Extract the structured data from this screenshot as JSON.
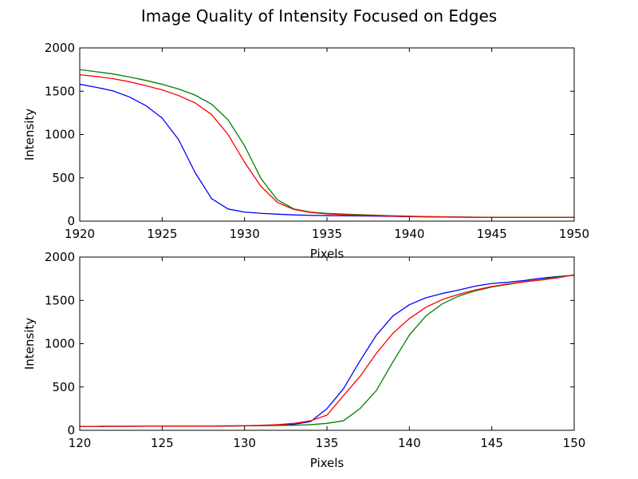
{
  "title": "Image Quality of Intensity Focused on Edges",
  "chart_data": [
    {
      "type": "line",
      "xlabel": "Pixels",
      "ylabel": "Intensity",
      "xlim": [
        1920,
        1950
      ],
      "ylim": [
        0,
        2000
      ],
      "xticks": [
        1920,
        1925,
        1930,
        1935,
        1940,
        1945,
        1950
      ],
      "yticks": [
        0,
        500,
        1000,
        1500,
        2000
      ],
      "grid": false,
      "x": [
        1920,
        1921,
        1922,
        1923,
        1924,
        1925,
        1926,
        1927,
        1928,
        1929,
        1930,
        1931,
        1932,
        1933,
        1934,
        1935,
        1936,
        1937,
        1938,
        1939,
        1940,
        1941,
        1942,
        1943,
        1944,
        1945,
        1946,
        1947,
        1948,
        1949,
        1950
      ],
      "series": [
        {
          "color": "#0000ff",
          "values": [
            1580,
            1545,
            1505,
            1435,
            1335,
            1190,
            940,
            560,
            260,
            140,
            105,
            90,
            80,
            72,
            67,
            64,
            62,
            60,
            58,
            55,
            52,
            50,
            48,
            46,
            45,
            44,
            44,
            43,
            43,
            43,
            43
          ]
        },
        {
          "color": "#008000",
          "values": [
            1750,
            1725,
            1700,
            1665,
            1625,
            1580,
            1525,
            1455,
            1350,
            1170,
            870,
            490,
            245,
            140,
            105,
            90,
            82,
            75,
            68,
            62,
            57,
            53,
            50,
            48,
            46,
            45,
            44,
            44,
            43,
            43,
            43
          ]
        },
        {
          "color": "#ff0000",
          "values": [
            1690,
            1670,
            1645,
            1610,
            1565,
            1515,
            1450,
            1365,
            1230,
            1000,
            680,
            400,
            215,
            135,
            100,
            83,
            75,
            68,
            63,
            58,
            54,
            51,
            48,
            46,
            45,
            44,
            44,
            43,
            43,
            43,
            43
          ]
        }
      ]
    },
    {
      "type": "line",
      "xlabel": "Pixels",
      "ylabel": "Intensity",
      "xlim": [
        120,
        150
      ],
      "ylim": [
        0,
        2000
      ],
      "xticks": [
        120,
        125,
        130,
        135,
        140,
        145,
        150
      ],
      "yticks": [
        0,
        500,
        1000,
        1500,
        2000
      ],
      "grid": false,
      "x": [
        120,
        121,
        122,
        123,
        124,
        125,
        126,
        127,
        128,
        129,
        130,
        131,
        132,
        133,
        134,
        135,
        136,
        137,
        138,
        139,
        140,
        141,
        142,
        143,
        144,
        145,
        146,
        147,
        148,
        149,
        150
      ],
      "series": [
        {
          "color": "#0000ff",
          "values": [
            45,
            45,
            46,
            46,
            47,
            47,
            48,
            48,
            49,
            50,
            52,
            55,
            60,
            70,
            100,
            250,
            480,
            800,
            1100,
            1320,
            1450,
            1530,
            1580,
            1620,
            1665,
            1695,
            1710,
            1730,
            1755,
            1775,
            1790
          ]
        },
        {
          "color": "#008000",
          "values": [
            45,
            45,
            46,
            46,
            47,
            47,
            48,
            48,
            49,
            50,
            51,
            53,
            55,
            58,
            65,
            80,
            110,
            250,
            460,
            790,
            1100,
            1320,
            1460,
            1550,
            1610,
            1655,
            1685,
            1715,
            1740,
            1770,
            1790
          ]
        },
        {
          "color": "#ff0000",
          "values": [
            45,
            45,
            46,
            46,
            47,
            47,
            48,
            48,
            49,
            50,
            53,
            57,
            65,
            80,
            110,
            175,
            400,
            620,
            890,
            1120,
            1290,
            1420,
            1510,
            1570,
            1620,
            1660,
            1690,
            1715,
            1735,
            1760,
            1795
          ]
        }
      ]
    }
  ]
}
